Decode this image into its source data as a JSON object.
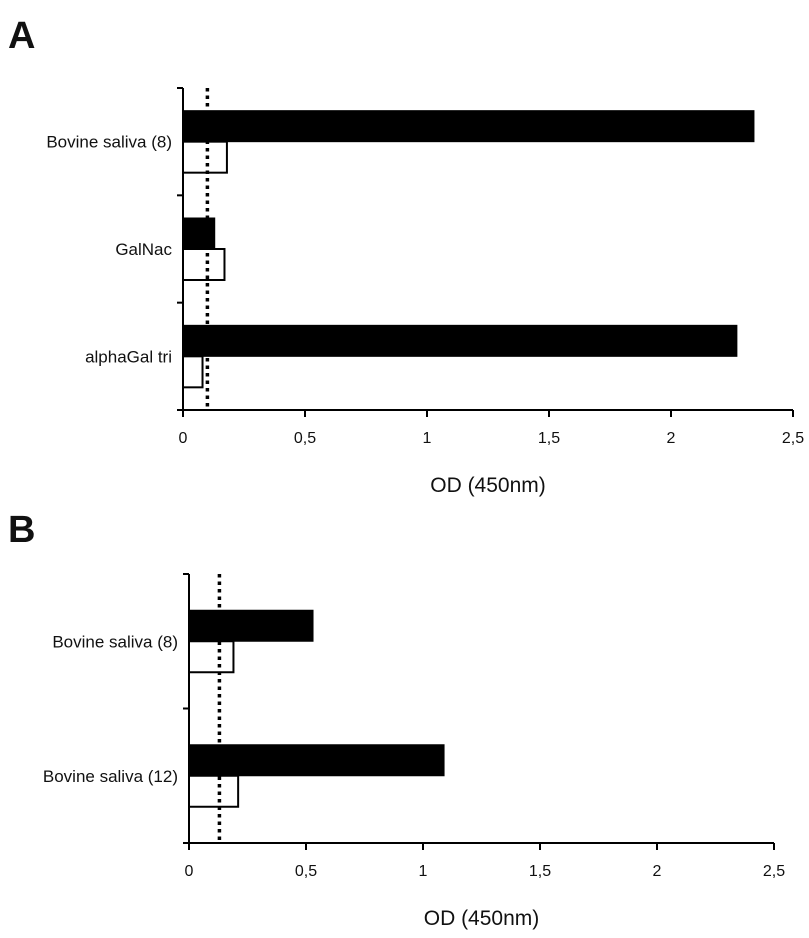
{
  "chart_data": [
    {
      "type": "bar",
      "orientation": "horizontal",
      "panel": "A",
      "categories": [
        "Bovine saliva (8)",
        "GalNac",
        "alphaGal tri"
      ],
      "series": [
        {
          "values": [
            2.34,
            0.13,
            2.27
          ],
          "color": "#000000"
        },
        {
          "values": [
            0.18,
            0.17,
            0.08
          ],
          "color": "#ffffff"
        }
      ],
      "reference_line": {
        "value": 0.1,
        "style": "dotted"
      },
      "xlabel": "OD (450nm)",
      "xlim": [
        0,
        2.5
      ],
      "xticks": [
        "0",
        "0,5",
        "1",
        "1,5",
        "2",
        "2,5"
      ],
      "grid": false
    },
    {
      "type": "bar",
      "orientation": "horizontal",
      "panel": "B",
      "categories": [
        "Bovine saliva (8)",
        "Bovine saliva (12)"
      ],
      "series": [
        {
          "values": [
            0.53,
            1.09
          ],
          "color": "#000000"
        },
        {
          "values": [
            0.19,
            0.21
          ],
          "color": "#ffffff"
        }
      ],
      "reference_line": {
        "value": 0.13,
        "style": "dotted"
      },
      "xlabel": "OD (450nm)",
      "xlim": [
        0,
        2.5
      ],
      "xticks": [
        "0",
        "0,5",
        "1",
        "1,5",
        "2",
        "2,5"
      ],
      "grid": false
    }
  ]
}
